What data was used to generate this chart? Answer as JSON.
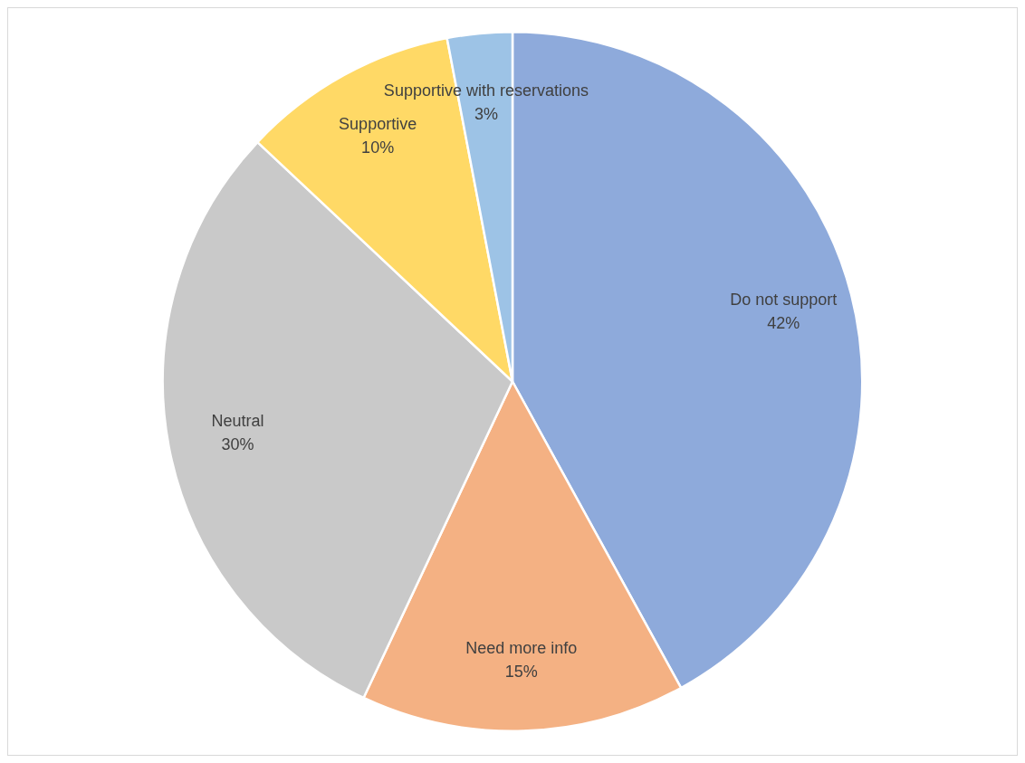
{
  "chart_data": {
    "type": "pie",
    "categories": [
      "Do not support",
      "Need more info",
      "Neutral",
      "Supportive",
      "Supportive with reservations"
    ],
    "values": [
      42,
      15,
      30,
      10,
      3
    ],
    "value_labels": [
      "42%",
      "15%",
      "30%",
      "10%",
      "3%"
    ],
    "colors": [
      "#8eaadb",
      "#f4b183",
      "#c9c9c9",
      "#ffd966",
      "#9dc3e6"
    ],
    "legend": false
  }
}
